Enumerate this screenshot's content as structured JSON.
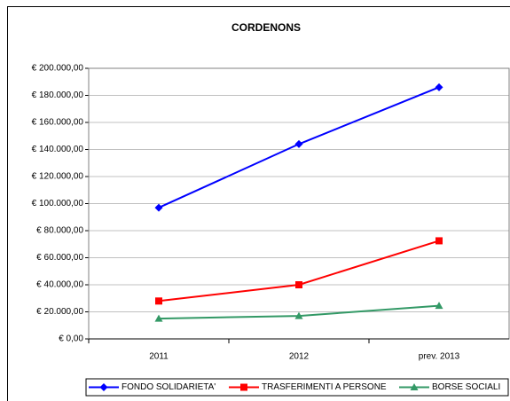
{
  "chart_data": {
    "type": "line",
    "title": "CORDENONS",
    "categories": [
      "2011",
      "2012",
      "prev. 2013"
    ],
    "series": [
      {
        "name": "FONDO SOLIDARIETA'",
        "color": "#0000ff",
        "marker": "diamond",
        "values": [
          97000,
          144000,
          186000
        ]
      },
      {
        "name": "TRASFERIMENTI A PERSONE",
        "color": "#ff0000",
        "marker": "square",
        "values": [
          28000,
          40000,
          72500
        ]
      },
      {
        "name": "BORSE SOCIALI",
        "color": "#339966",
        "marker": "triangle",
        "values": [
          15000,
          17000,
          24500
        ]
      }
    ],
    "ylim": [
      0,
      200000
    ],
    "yticks": [
      {
        "value": 0,
        "label": "€ 0,00"
      },
      {
        "value": 20000,
        "label": "€ 20.000,00"
      },
      {
        "value": 40000,
        "label": "€ 40.000,00"
      },
      {
        "value": 60000,
        "label": "€ 60.000,00"
      },
      {
        "value": 80000,
        "label": "€ 80.000,00"
      },
      {
        "value": 100000,
        "label": "€ 100.000,00"
      },
      {
        "value": 120000,
        "label": "€ 120.000,00"
      },
      {
        "value": 140000,
        "label": "€ 140.000,00"
      },
      {
        "value": 160000,
        "label": "€ 160.000,00"
      },
      {
        "value": 180000,
        "label": "€ 180.000,00"
      },
      {
        "value": 200000,
        "label": "€ 200.000,00"
      }
    ],
    "grid": true,
    "legend": "bottom"
  }
}
